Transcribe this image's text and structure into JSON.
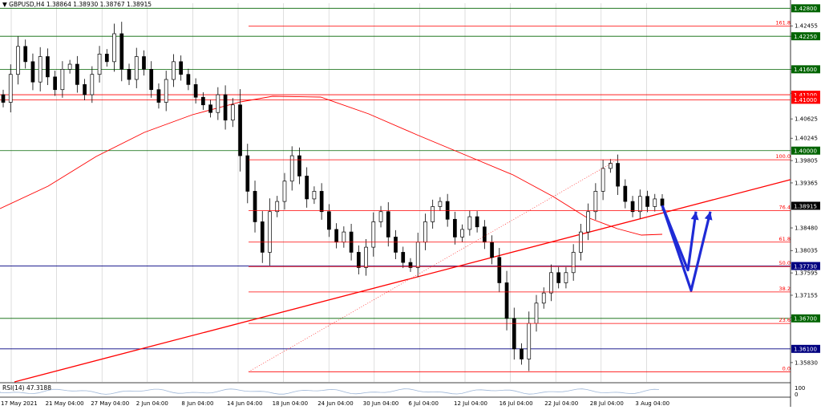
{
  "header": {
    "symbol_line": "GBPUSD,H4  1.38864 1.38930 1.38767 1.38915",
    "collapse_glyph": "▼"
  },
  "rsi": {
    "label": "RSI(14) 47.3188",
    "scale_top": "100",
    "scale_bottom": "0"
  },
  "colors": {
    "bull_candle": "#000000",
    "bear_candle": "#000000",
    "support_resistance_green": "#006400",
    "level_blue": "#000080",
    "fib_red": "#ff0000",
    "arrow_blue": "#1f2bd6",
    "grid": "#c8c8c8"
  },
  "chart_data": {
    "type": "candlestick",
    "symbol": "GBPUSD",
    "timeframe": "H4",
    "last_ohlc": {
      "open": 1.38864,
      "high": 1.3893,
      "low": 1.38767,
      "close": 1.38915
    },
    "price_axis_ticks": [
      "1.42455",
      "1.42250",
      "1.41600",
      "1.41130",
      "1.40625",
      "1.40245",
      "1.39805",
      "1.39365",
      "1.38480",
      "1.38035",
      "1.37595",
      "1.37155",
      "1.36715",
      "1.35830"
    ],
    "highlighted_levels": [
      {
        "label": "1.42800",
        "price": 1.428,
        "box_color": "#006400"
      },
      {
        "label": "1.42250",
        "price": 1.4225,
        "box_color": "#006400"
      },
      {
        "label": "1.41600",
        "price": 1.416,
        "box_color": "#006400"
      },
      {
        "label": "1.41100",
        "price": 1.411,
        "box_color": "#ff0000"
      },
      {
        "label": "1.41000",
        "price": 1.41,
        "box_color": "#ff0000"
      },
      {
        "label": "1.40000",
        "price": 1.4,
        "box_color": "#006400"
      },
      {
        "label": "1.38915",
        "price": 1.38915,
        "box_color": "#000000"
      },
      {
        "label": "1.37730",
        "price": 1.3773,
        "box_color": "#000080"
      },
      {
        "label": "1.36700",
        "price": 1.367,
        "box_color": "#006400"
      },
      {
        "label": "1.36100",
        "price": 1.361,
        "box_color": "#000080"
      }
    ],
    "horizontal_lines": [
      {
        "price": 1.428,
        "color": "#006400",
        "from": 0.0
      },
      {
        "price": 1.4225,
        "color": "#006400",
        "from": 0.0
      },
      {
        "price": 1.416,
        "color": "#006400",
        "from": 0.0
      },
      {
        "price": 1.411,
        "color": "#ff0000",
        "from": 0.0
      },
      {
        "price": 1.41,
        "color": "#ff0000",
        "from": 0.0
      },
      {
        "price": 1.4,
        "color": "#006400",
        "from": 0.0
      },
      {
        "price": 1.3773,
        "color": "#000080",
        "from": 0.0
      },
      {
        "price": 1.367,
        "color": "#006400",
        "from": 0.0
      },
      {
        "price": 1.361,
        "color": "#000080",
        "from": 0.0
      }
    ],
    "fibonacci": {
      "levels": [
        {
          "label": "161.8",
          "price": 1.4245
        },
        {
          "label": "100.0",
          "price": 1.3982
        },
        {
          "label": "76.4",
          "price": 1.3882
        },
        {
          "label": "61.8",
          "price": 1.382
        },
        {
          "label": "50.0",
          "price": 1.3772
        },
        {
          "label": "38.2",
          "price": 1.3722
        },
        {
          "label": "23.6",
          "price": 1.366
        },
        {
          "label": "0.0",
          "price": 1.3565
        }
      ]
    },
    "time_axis_labels": [
      "17 May 2021",
      "21 May 04:00",
      "27 May 04:00",
      "2 Jun 04:00",
      "8 Jun 04:00",
      "14 Jun 04:00",
      "18 Jun 04:00",
      "24 Jun 04:00",
      "30 Jun 04:00",
      "6 Jul 04:00",
      "12 Jul 04:00",
      "16 Jul 04:00",
      "22 Jul 04:00",
      "28 Jul 04:00",
      "3 Aug 04:00"
    ],
    "ylim": [
      1.3545,
      1.429
    ],
    "grid": true,
    "price_path_closes": [
      1.4095,
      1.415,
      1.4205,
      1.4175,
      1.4135,
      1.4185,
      1.4145,
      1.412,
      1.416,
      1.417,
      1.413,
      1.411,
      1.415,
      1.419,
      1.4175,
      1.423,
      1.416,
      1.414,
      1.4185,
      1.416,
      1.412,
      1.4095,
      1.414,
      1.4175,
      1.415,
      1.413,
      1.4105,
      1.409,
      1.4075,
      1.411,
      1.406,
      1.409,
      1.399,
      1.392,
      1.386,
      1.38,
      1.388,
      1.39,
      1.394,
      1.399,
      1.395,
      1.3905,
      1.392,
      1.388,
      1.3845,
      1.382,
      1.384,
      1.38,
      1.377,
      1.381,
      1.386,
      1.388,
      1.383,
      1.38,
      1.378,
      1.377,
      1.382,
      1.386,
      1.389,
      1.39,
      1.3865,
      1.383,
      1.3845,
      1.387,
      1.385,
      1.382,
      1.379,
      1.374,
      1.367,
      1.361,
      1.359,
      1.366,
      1.37,
      1.372,
      1.376,
      1.374,
      1.376,
      1.38,
      1.384,
      1.388,
      1.392,
      1.3965,
      1.3975,
      1.393,
      1.39,
      1.388,
      1.391,
      1.389,
      1.3905,
      1.3892
    ]
  }
}
